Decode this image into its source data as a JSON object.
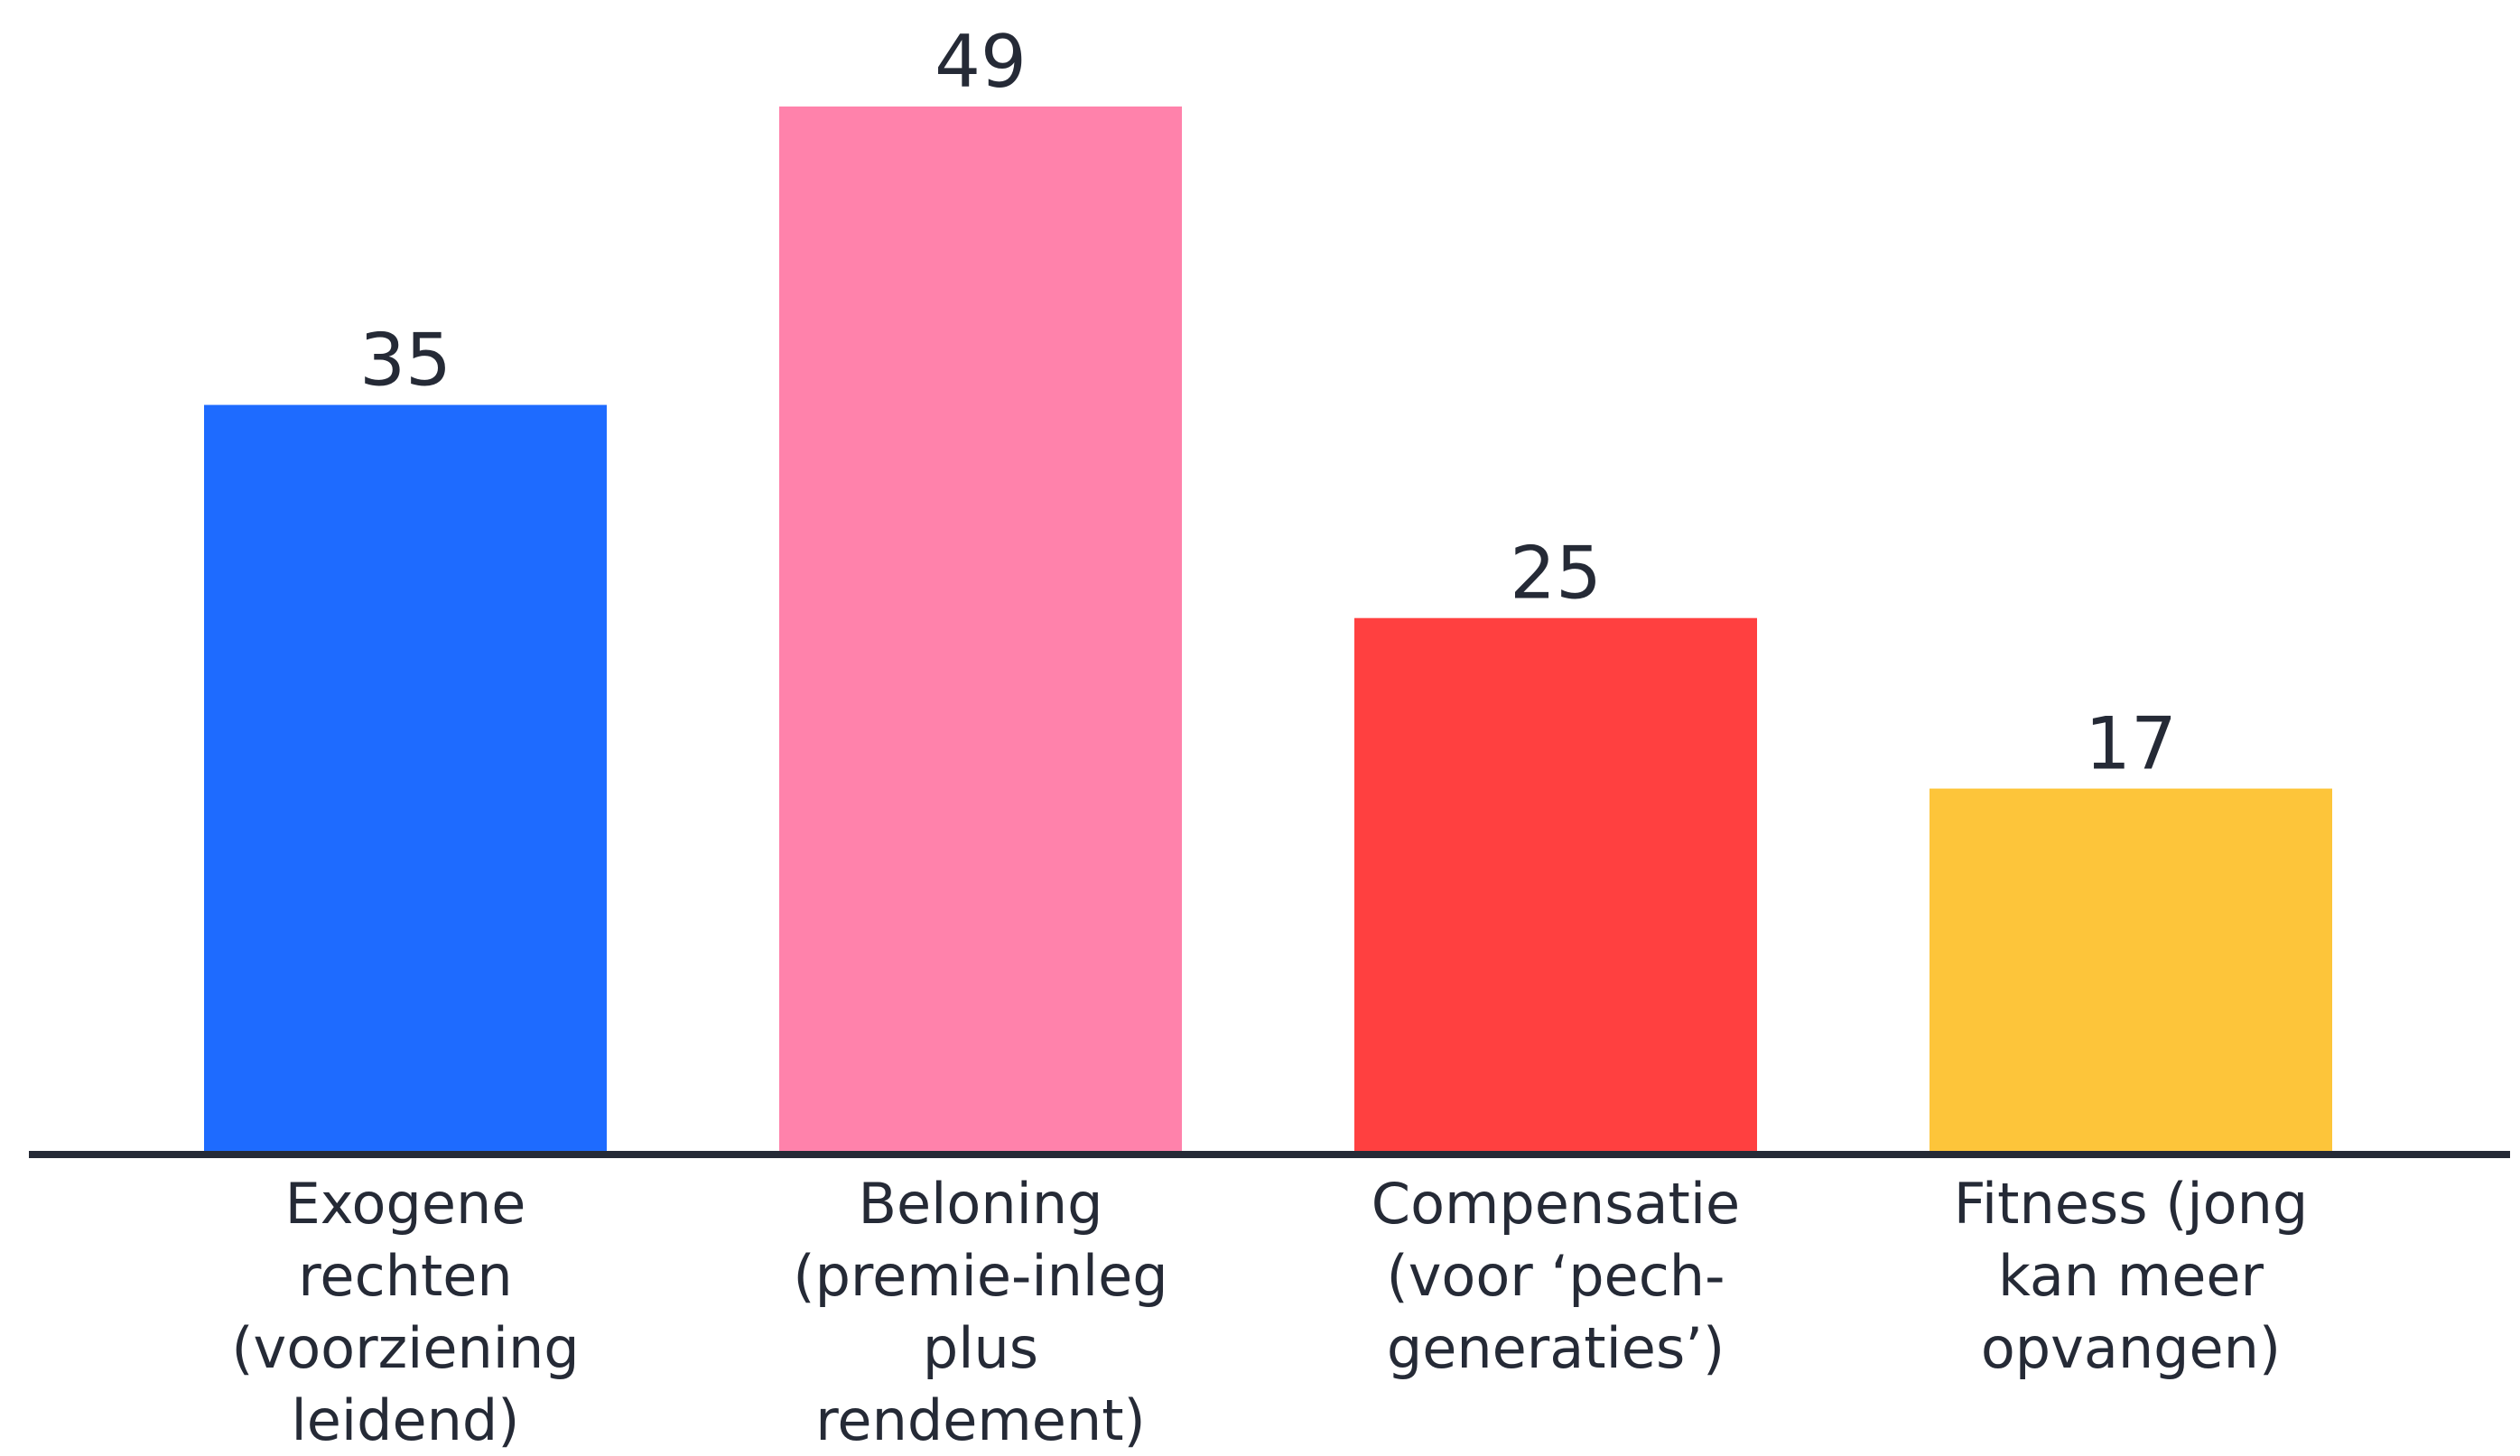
{
  "chart_data": {
    "type": "bar",
    "title": "",
    "xlabel": "",
    "ylabel": "",
    "ylim": [
      0,
      49
    ],
    "grid": false,
    "legend": "none",
    "categories": [
      "Exogene rechten (voorziening leidend)",
      "Beloning (premie-inleg plus rendement)",
      "Compensatie (voor ‘pech-generaties’)",
      "Fitness (jong kan meer opvangen)"
    ],
    "category_lines": [
      [
        "Exogene",
        "rechten",
        "(voorziening",
        "leidend)"
      ],
      [
        "Beloning",
        "(premie-inleg",
        "plus",
        "rendement)"
      ],
      [
        "Compensatie",
        "(voor ‘pech-",
        "generaties’)"
      ],
      [
        "Fitness (jong",
        "kan meer",
        "opvangen)"
      ]
    ],
    "values": [
      35,
      49,
      25,
      17
    ],
    "data_labels": [
      "35",
      "49",
      "25",
      "17"
    ],
    "colors": [
      "#1e6bff",
      "#ff82ab",
      "#ff4040",
      "#fdc53a"
    ],
    "axis_color": "#252a36"
  }
}
